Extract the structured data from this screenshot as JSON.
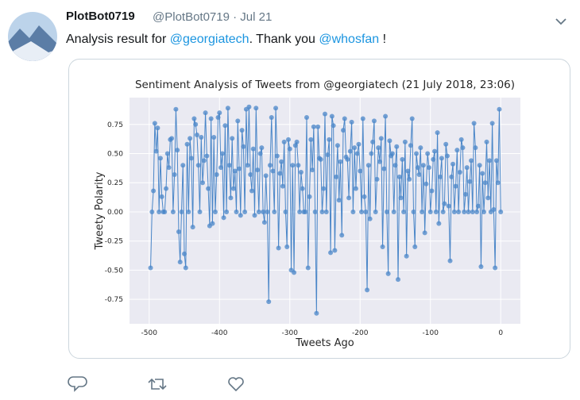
{
  "tweet": {
    "name": "PlotBot0719",
    "handle_line": "@PlotBot0719 · Jul 21",
    "text_parts": [
      {
        "text": "Analysis result for ",
        "link": false
      },
      {
        "text": "@georgiatech",
        "link": true
      },
      {
        "text": ". Thank you ",
        "link": false
      },
      {
        "text": "@whosfan",
        "link": true
      },
      {
        "text": " !",
        "link": false
      }
    ]
  },
  "chart_data": {
    "type": "line",
    "title": "Sentiment Analysis of Tweets from @georgiatech (21 July 2018, 23:06)",
    "x_label": "Tweets Ago",
    "y_label": "Tweety Polarity",
    "grid": true,
    "color": "#4a86c8",
    "xlim": [
      -528,
      28
    ],
    "ylim": [
      -0.96,
      0.98
    ],
    "xticks": [
      -500,
      -400,
      -300,
      -200,
      -100,
      0
    ],
    "yticks": [
      -0.75,
      {
        "value": -0.5,
        "label": "-0.50"
      },
      -0.25,
      {
        "value": 0,
        "label": "0.00"
      },
      0.25,
      {
        "value": 0.5,
        "label": "0.50"
      },
      0.75
    ],
    "x": [
      -498,
      -496,
      -494,
      -492,
      -490,
      -488,
      -486,
      -484,
      -482,
      -480,
      -478,
      -476,
      -474,
      -472,
      -470,
      -468,
      -466,
      -464,
      -462,
      -460,
      -458,
      -456,
      -454,
      -452,
      -450,
      -448,
      -446,
      -444,
      -442,
      -440,
      -438,
      -436,
      -434,
      -432,
      -430,
      -428,
      -426,
      -424,
      -422,
      -420,
      -418,
      -416,
      -414,
      -412,
      -410,
      -408,
      -406,
      -404,
      -402,
      -400,
      -398,
      -396,
      -394,
      -392,
      -390,
      -388,
      -386,
      -384,
      -382,
      -380,
      -378,
      -376,
      -374,
      -372,
      -370,
      -368,
      -366,
      -364,
      -362,
      -360,
      -358,
      -356,
      -354,
      -352,
      -350,
      -348,
      -346,
      -344,
      -342,
      -340,
      -338,
      -336,
      -334,
      -332,
      -330,
      -328,
      -326,
      -324,
      -322,
      -320,
      -318,
      -316,
      -314,
      -312,
      -310,
      -308,
      -306,
      -304,
      -302,
      -300,
      -298,
      -296,
      -294,
      -292,
      -290,
      -288,
      -286,
      -284,
      -282,
      -280,
      -278,
      -276,
      -274,
      -272,
      -270,
      -268,
      -266,
      -264,
      -262,
      -260,
      -258,
      -256,
      -254,
      -252,
      -250,
      -248,
      -246,
      -244,
      -242,
      -240,
      -238,
      -236,
      -234,
      -232,
      -230,
      -228,
      -226,
      -224,
      -222,
      -220,
      -218,
      -216,
      -214,
      -212,
      -210,
      -208,
      -206,
      -204,
      -202,
      -200,
      -198,
      -196,
      -194,
      -192,
      -190,
      -188,
      -186,
      -184,
      -182,
      -180,
      -178,
      -176,
      -174,
      -172,
      -170,
      -168,
      -166,
      -164,
      -162,
      -160,
      -158,
      -156,
      -154,
      -152,
      -150,
      -148,
      -146,
      -144,
      -142,
      -140,
      -138,
      -136,
      -134,
      -132,
      -130,
      -128,
      -126,
      -124,
      -122,
      -120,
      -118,
      -116,
      -114,
      -112,
      -110,
      -108,
      -106,
      -104,
      -102,
      -100,
      -98,
      -96,
      -94,
      -92,
      -90,
      -88,
      -86,
      -84,
      -82,
      -80,
      -78,
      -76,
      -74,
      -72,
      -70,
      -68,
      -66,
      -64,
      -62,
      -60,
      -58,
      -56,
      -54,
      -52,
      -50,
      -48,
      -46,
      -44,
      -42,
      -40,
      -38,
      -36,
      -34,
      -32,
      -30,
      -28,
      -26,
      -24,
      -22,
      -20,
      -18,
      -16,
      -14,
      -12,
      -10,
      -8,
      -6,
      -4,
      -2,
      0
    ],
    "values": [
      -0.48,
      0,
      0.18,
      0.76,
      0.52,
      0.72,
      0,
      0.46,
      0.13,
      0,
      0,
      0.2,
      0.5,
      0.38,
      0.62,
      0.63,
      0,
      0.32,
      0.88,
      0.53,
      -0.17,
      -0.43,
      0,
      0.4,
      -0.36,
      -0.48,
      0.58,
      0,
      0.63,
      0.46,
      -0.13,
      0.8,
      0.75,
      0.66,
      0.4,
      0,
      0.64,
      0.25,
      0.44,
      0.85,
      0.48,
      0.2,
      -0.12,
      0.8,
      -0.1,
      0.64,
      0,
      0.32,
      0.81,
      0.85,
      0.38,
      0.5,
      -0.05,
      0.74,
      0,
      0.89,
      0.4,
      0.12,
      0.63,
      0.2,
      0.35,
      0,
      0.78,
      0.37,
      -0.03,
      0.7,
      0.56,
      0,
      0.88,
      0.4,
      0.9,
      0.32,
      0.18,
      0.54,
      -0.03,
      0.89,
      0.36,
      0,
      0.5,
      0.55,
      0,
      -0.09,
      0.31,
      0,
      -0.77,
      0.4,
      0.81,
      0.35,
      0,
      0.89,
      0.48,
      -0.31,
      0.33,
      0.43,
      0.22,
      0.6,
      0,
      -0.3,
      0.62,
      0.54,
      -0.5,
      0.4,
      -0.52,
      0.57,
      0.6,
      0.4,
      0,
      0.34,
      0.2,
      0,
      0,
      0.81,
      -0.48,
      0.13,
      0.62,
      0.36,
      0.73,
      0,
      -0.87,
      0.73,
      0.46,
      0.45,
      0,
      0.2,
      0.84,
      0,
      0.49,
      0.62,
      -0.35,
      0.82,
      0.74,
      -0.33,
      0.3,
      0.57,
      0.1,
      0.43,
      -0.2,
      0.7,
      0.8,
      0.47,
      0.45,
      0.12,
      0.52,
      0.77,
      0,
      0.55,
      0.2,
      0.5,
      0.58,
      0.35,
      0,
      0.8,
      0.13,
      0,
      -0.67,
      0.4,
      -0.06,
      0.5,
      0.6,
      0.78,
      0,
      0.28,
      0.55,
      0.43,
      0.63,
      -0.3,
      0.37,
      0.82,
      0,
      -0.53,
      0.61,
      0.48,
      0.5,
      0,
      0.4,
      0.56,
      -0.58,
      0.3,
      0.12,
      0.45,
      0,
      0.6,
      -0.38,
      0.35,
      0.28,
      0.57,
      0.8,
      0,
      -0.3,
      0.5,
      0.38,
      0.32,
      0.55,
      0,
      0.4,
      -0.18,
      0.24,
      0.5,
      0.38,
      0,
      0.18,
      0.45,
      0.52,
      0,
      0.68,
      -0.1,
      0.3,
      0.46,
      0,
      0.07,
      0.58,
      0.48,
      0.05,
      -0.42,
      0.3,
      0.41,
      0,
      0.22,
      0.53,
      0,
      0.34,
      0.62,
      0.55,
      0,
      0.15,
      0.38,
      0,
      0.26,
      0.44,
      0,
      0.76,
      0.55,
      0,
      0.05,
      0.4,
      -0.47,
      0.33,
      0,
      0.25,
      0.6,
      0.12,
      0.44,
      0,
      0.76,
      0.02,
      -0.48,
      0.44,
      0.25,
      0.88,
      0
    ]
  }
}
